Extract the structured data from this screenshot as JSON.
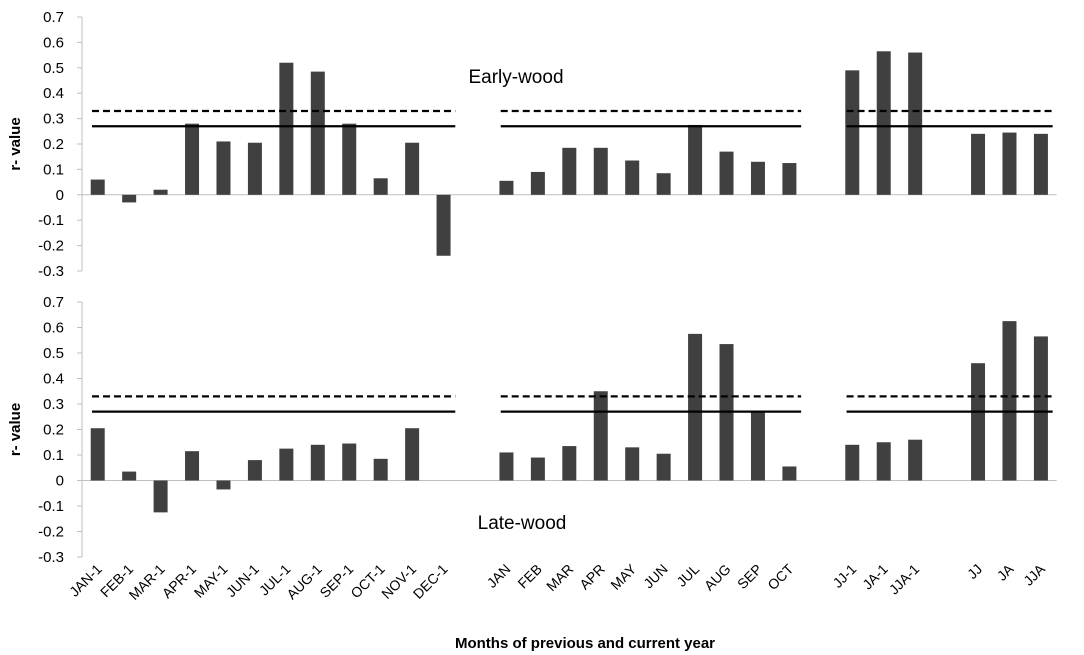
{
  "chart_data": {
    "type": "bar",
    "xlabel": "Months of previous and current year",
    "categories": [
      "JAN-1",
      "FEB-1",
      "MAR-1",
      "APR-1",
      "MAY-1",
      "JUN-1",
      "JUL-1",
      "AUG-1",
      "SEP-1",
      "OCT-1",
      "NOV-1",
      "DEC-1",
      "",
      "JAN",
      "FEB",
      "MAR",
      "APR",
      "MAY",
      "JUN",
      "JUL",
      "AUG",
      "SEP",
      "OCT",
      "",
      "JJ-1",
      "JA-1",
      "JJA-1",
      "",
      "JJ",
      "JA",
      "JJA"
    ],
    "yticks": [
      "0.7",
      "0.6",
      "0.5",
      "0.4",
      "0.3",
      "0.2",
      "0.1",
      "0",
      "-0.1",
      "-0.2",
      "-0.3"
    ],
    "bar_color": "#404040",
    "panels": [
      {
        "label": "Early-wood",
        "ylabel": "r- value",
        "ylim": [
          -0.3,
          0.7
        ],
        "values": [
          0.06,
          -0.03,
          0.02,
          0.28,
          0.21,
          0.205,
          0.52,
          0.485,
          0.28,
          0.065,
          0.205,
          -0.24,
          null,
          0.055,
          0.09,
          0.185,
          0.185,
          0.135,
          0.085,
          0.275,
          0.17,
          0.13,
          0.125,
          null,
          0.49,
          0.565,
          0.56,
          null,
          0.24,
          0.245,
          0.24
        ],
        "reference_lines": [
          {
            "style": "dashed",
            "value": 0.33
          },
          {
            "style": "solid",
            "value": 0.27
          }
        ]
      },
      {
        "label": "Late-wood",
        "ylabel": "r- value",
        "ylim": [
          -0.3,
          0.7
        ],
        "values": [
          0.205,
          0.035,
          -0.125,
          0.115,
          -0.035,
          0.08,
          0.125,
          0.14,
          0.145,
          0.085,
          0.205,
          null,
          null,
          0.11,
          0.09,
          0.135,
          0.35,
          0.13,
          0.105,
          0.575,
          0.535,
          0.27,
          0.055,
          null,
          0.14,
          0.15,
          0.16,
          null,
          0.46,
          0.625,
          0.565
        ],
        "reference_lines": [
          {
            "style": "dashed",
            "value": 0.33
          },
          {
            "style": "solid",
            "value": 0.27
          }
        ]
      }
    ]
  }
}
